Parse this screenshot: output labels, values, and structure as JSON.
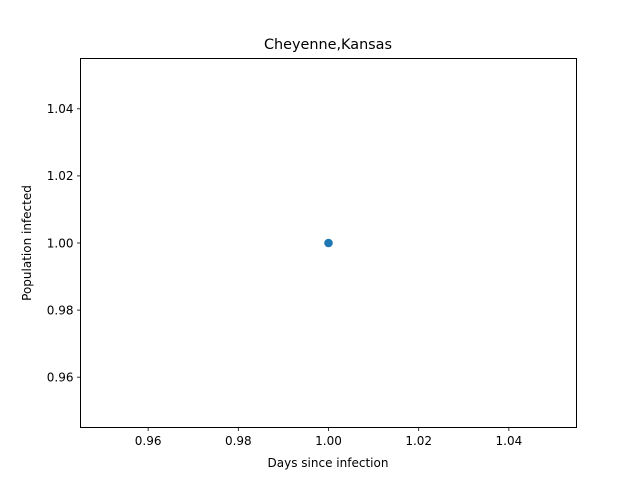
{
  "chart_data": {
    "type": "scatter",
    "title": "Cheyenne,Kansas",
    "xlabel": "Days since infection",
    "ylabel": "Population infected",
    "xlim": [
      0.945,
      1.055
    ],
    "ylim": [
      0.945,
      1.055
    ],
    "xticks": [
      "0.96",
      "0.98",
      "1.00",
      "1.02",
      "1.04"
    ],
    "yticks": [
      "0.96",
      "0.98",
      "1.00",
      "1.02",
      "1.04"
    ],
    "points": [
      {
        "x": 1.0,
        "y": 1.0
      }
    ],
    "grid": false,
    "colors": {
      "marker": "#1f77b4",
      "axes": "#000000",
      "background": "#ffffff"
    }
  }
}
